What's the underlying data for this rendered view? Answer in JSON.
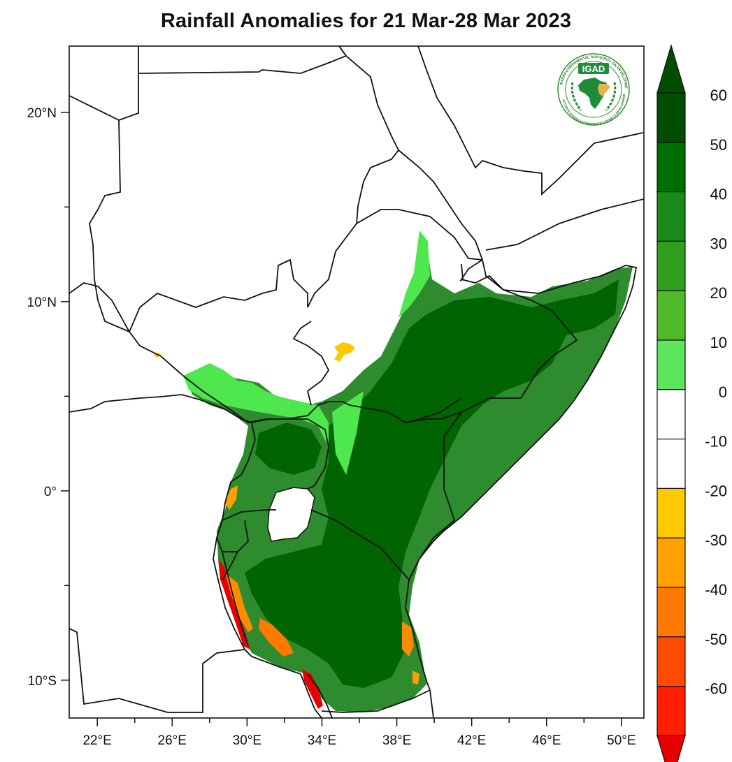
{
  "title": "Rainfall Anomalies for 21 Mar-28 Mar 2023",
  "map": {
    "lon_range": [
      20.5,
      51.2
    ],
    "lat_range": [
      -12,
      23.5
    ],
    "x_ticks": [
      {
        "lon": 22,
        "label": "22°E"
      },
      {
        "lon": 26,
        "label": "26°E"
      },
      {
        "lon": 30,
        "label": "30°E"
      },
      {
        "lon": 34,
        "label": "34°E"
      },
      {
        "lon": 38,
        "label": "38°E"
      },
      {
        "lon": 42,
        "label": "42°E"
      },
      {
        "lon": 46,
        "label": "46°E"
      },
      {
        "lon": 50,
        "label": "50°E"
      }
    ],
    "y_ticks": [
      {
        "lat": 20,
        "label": "20°N"
      },
      {
        "lat": 10,
        "label": "10°N"
      },
      {
        "lat": 0,
        "label": "0°"
      },
      {
        "lat": -10,
        "label": "10°S"
      }
    ]
  },
  "logo": {
    "text": "IGAD",
    "ring_text": "INTERGOVERNMENTAL AUTHORITY ON DEVELOPMENT",
    "ring_text_fr": "AUTORITE INTERGOUVERNEMENTALE POUR LE DEVELOPPEMENT"
  },
  "colorbar": {
    "labels": [
      "60",
      "50",
      "40",
      "30",
      "20",
      "10",
      "0",
      "-10",
      "-20",
      "-30",
      "-40",
      "-50",
      "-60"
    ],
    "colors": [
      "#004d00",
      "#006e00",
      "#1a8a1a",
      "#329e1e",
      "#50b92a",
      "#5ce65c",
      "#ffffff",
      "#ffffff",
      "#ffc800",
      "#ffa000",
      "#ff7800",
      "#ff4b00",
      "#ff1e00",
      "#e60000"
    ],
    "top_triangle": "#004d00",
    "bottom_triangle": "#e60000"
  },
  "colors": {
    "dark_green": "#006400",
    "mid_green": "#2e8b2e",
    "light_green": "#4ee84e",
    "yellow": "#ffc800",
    "orange": "#ff8c00",
    "red": "#e60000",
    "border": "#111111"
  }
}
